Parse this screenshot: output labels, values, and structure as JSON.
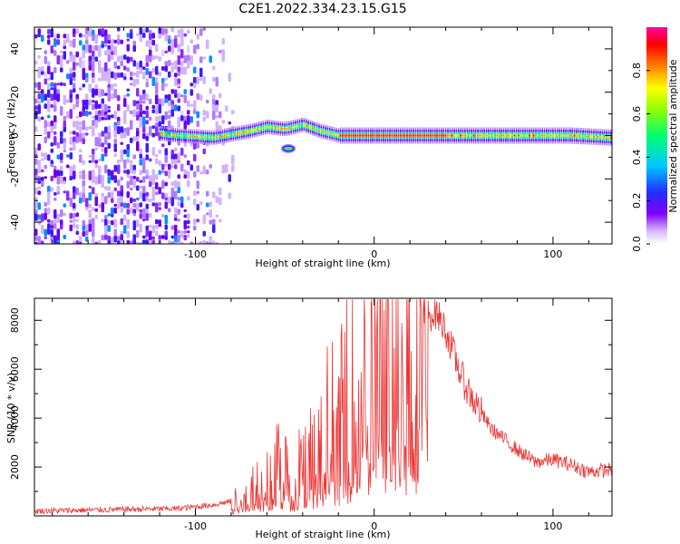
{
  "title": "C2E1.2022.334.23.15.G15",
  "chart_data": [
    {
      "type": "heatmap",
      "xlabel": "Height of straight line (km)",
      "ylabel": "Frequency (Hz)",
      "xlim": [
        -190,
        133
      ],
      "ylim": [
        -50,
        50
      ],
      "x_ticks": [
        -100,
        0,
        100
      ],
      "y_ticks": [
        -40,
        -20,
        0,
        20,
        40
      ],
      "colorbar": {
        "label": "Normalized spectral amplitude",
        "range": [
          0.0,
          1.0
        ],
        "ticks": [
          0.0,
          0.2,
          0.4,
          0.6,
          0.8
        ]
      },
      "features": {
        "noise_region_x": [
          -190,
          -80
        ],
        "trace": [
          {
            "x": -120,
            "y": 1
          },
          {
            "x": -110,
            "y": 0
          },
          {
            "x": -90,
            "y": -1
          },
          {
            "x": -70,
            "y": 2
          },
          {
            "x": -60,
            "y": 4
          },
          {
            "x": -50,
            "y": 3
          },
          {
            "x": -40,
            "y": 5
          },
          {
            "x": -30,
            "y": 2
          },
          {
            "x": -20,
            "y": 0
          },
          {
            "x": 0,
            "y": 0
          },
          {
            "x": 30,
            "y": 0
          },
          {
            "x": 60,
            "y": 0
          },
          {
            "x": 90,
            "y": 0
          },
          {
            "x": 110,
            "y": 0
          },
          {
            "x": 133,
            "y": -1
          }
        ]
      }
    },
    {
      "type": "line",
      "xlabel": "Height of straight line (km)",
      "ylabel": "SNR (10 * v/v)",
      "xlim": [
        -190,
        133
      ],
      "ylim": [
        0,
        8900
      ],
      "x_ticks": [
        -100,
        0,
        100
      ],
      "y_ticks": [
        2000,
        4000,
        6000,
        8000
      ],
      "color": "#ee3333",
      "series": [
        {
          "x": [
            -190,
            -150,
            -110,
            -90,
            -80,
            -70,
            -60,
            -50,
            -45,
            -40,
            -35,
            -30,
            -25,
            -20,
            -15,
            -10,
            -5,
            0,
            5,
            10,
            15,
            20,
            25,
            30,
            35,
            40,
            45,
            50,
            55,
            60,
            65,
            70,
            80,
            90,
            100,
            110,
            120,
            133
          ],
          "y": [
            200,
            250,
            300,
            450,
            600,
            1000,
            1800,
            2200,
            1500,
            2700,
            2500,
            3500,
            4000,
            3800,
            4800,
            5500,
            5800,
            6000,
            6800,
            7200,
            7600,
            7900,
            8000,
            8200,
            8300,
            7600,
            6500,
            5500,
            4800,
            4200,
            3600,
            3300,
            2700,
            2200,
            2300,
            2100,
            1800,
            1900
          ]
        }
      ]
    }
  ]
}
